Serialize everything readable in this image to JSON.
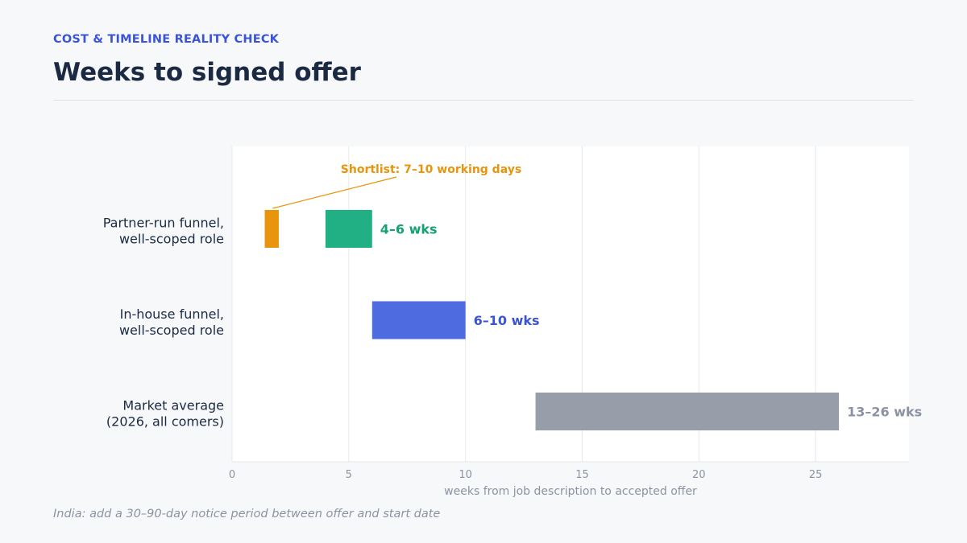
{
  "header": {
    "eyebrow": "COST & TIMELINE REALITY CHECK",
    "title": "Weeks to signed offer"
  },
  "footnote": "India: add a 30–90-day notice period between offer and start date",
  "chart_data": {
    "type": "bar",
    "orientation": "horizontal-range",
    "xlabel": "weeks from job description to accepted offer",
    "xlim": [
      0,
      29
    ],
    "xticks": [
      0,
      5,
      10,
      15,
      20,
      25
    ],
    "grid": true,
    "categories": [
      [
        "Partner-run funnel,",
        "well-scoped role"
      ],
      [
        "In-house funnel,",
        "well-scoped role"
      ],
      [
        "Market average",
        "(2026, all comers)"
      ]
    ],
    "series": [
      {
        "values": [
          {
            "category": 0,
            "start": 4,
            "end": 6,
            "label": "4–6 wks",
            "color": "#21b083",
            "label_color": "#14a271"
          },
          {
            "category": 1,
            "start": 6,
            "end": 10,
            "label": "6–10 wks",
            "color": "#4e6ce0",
            "label_color": "#3b54d6"
          },
          {
            "category": 2,
            "start": 13,
            "end": 26,
            "label": "13–26 wks",
            "color": "#979ea9",
            "label_color": "#8b93a3"
          }
        ]
      }
    ],
    "highlight": {
      "category": 0,
      "start": 1.4,
      "end": 2,
      "color": "#e8940c"
    },
    "annotation": {
      "text": "Shortlist: 7–10 working days",
      "color": "#e8940c"
    }
  }
}
